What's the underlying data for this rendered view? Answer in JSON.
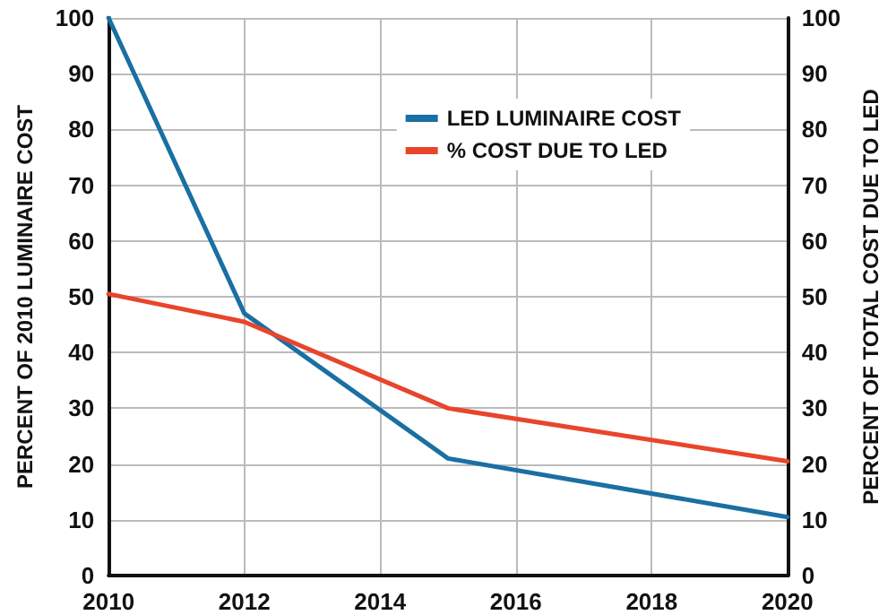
{
  "chart_data": {
    "type": "line",
    "ylabel": "PERCENT OF 2010 LUMINAIRE COST",
    "y2label": "PERCENT OF TOTAL COST DUE TO LED",
    "x": [
      2010,
      2012,
      2015,
      2020
    ],
    "series": [
      {
        "name": "LED LUMINAIRE COST",
        "color": "#1a6fa3",
        "values": [
          100,
          47,
          21,
          10.5
        ]
      },
      {
        "name": "% COST DUE TO LED",
        "color": "#e8452c",
        "values": [
          50.5,
          45.5,
          30,
          20.5
        ],
        "axis": "y2"
      }
    ],
    "xlim": [
      2010,
      2020
    ],
    "xticks": [
      2010,
      2012,
      2014,
      2016,
      2018,
      2020
    ],
    "ylim": [
      0,
      100
    ],
    "yticks": [
      0,
      10,
      20,
      30,
      40,
      50,
      60,
      70,
      80,
      90,
      100
    ],
    "y2lim": [
      0,
      100
    ],
    "y2ticks": [
      0,
      10,
      20,
      30,
      40,
      50,
      60,
      70,
      80,
      90,
      100
    ],
    "grid": true,
    "legend": "top right",
    "marker": "none",
    "line_style": "solid"
  }
}
